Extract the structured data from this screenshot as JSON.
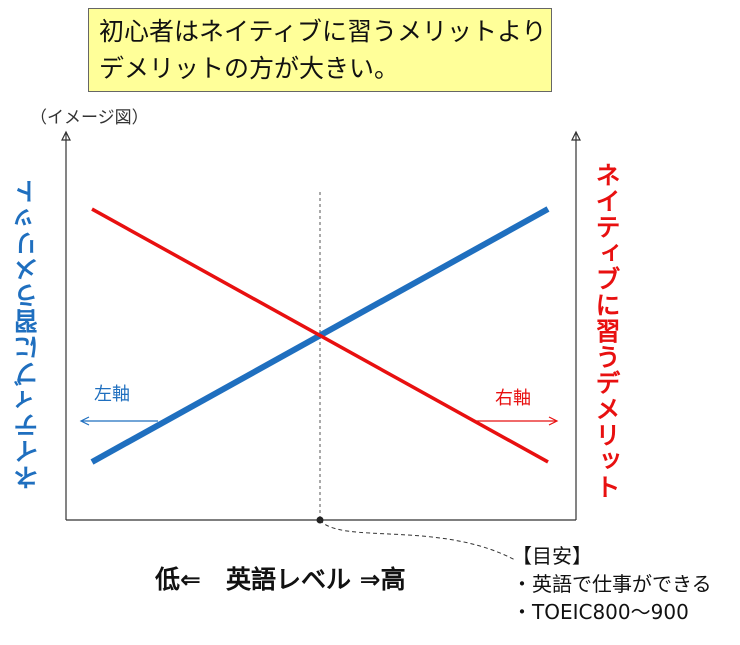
{
  "header": {
    "line1": "初心者はネイティブに習うメリットより",
    "line2": "デメリットの方が大きい。"
  },
  "note": "（イメージ図）",
  "axes": {
    "left_label": "ネイティブに習うメリット",
    "right_label": "ネイティブに習うデメリット",
    "left_tag": "左軸",
    "right_tag": "右軸",
    "x_label": "低⇐　英語レベル ⇒高"
  },
  "guide": {
    "title": "【目安】",
    "items": [
      "・英語で仕事ができる",
      "・TOEIC800〜900"
    ]
  },
  "colors": {
    "merit": "#1f6fbf",
    "demerit": "#e81010",
    "axis": "#333333"
  },
  "chart_data": {
    "type": "line",
    "title": "初心者はネイティブに習うメリットよりデメリットの方が大きい。",
    "xlabel": "低⇐　英語レベル ⇒高",
    "ylabel": "ネイティブに習うメリット",
    "y2label": "ネイティブに習うデメリット",
    "x": [
      0,
      1
    ],
    "xlim": [
      0,
      1
    ],
    "ylim": [
      0,
      1
    ],
    "grid": false,
    "series": [
      {
        "name": "ネイティブに習うメリット",
        "axis": "left",
        "color": "#1f6fbf",
        "values": [
          0.05,
          0.95
        ]
      },
      {
        "name": "ネイティブに習うデメリット",
        "axis": "right",
        "color": "#e81010",
        "values": [
          0.95,
          0.05
        ]
      }
    ],
    "annotations": [
      {
        "type": "vline",
        "x": 0.5,
        "style": "dashed"
      },
      {
        "type": "arrow",
        "direction": "left",
        "text": "左軸"
      },
      {
        "type": "arrow",
        "direction": "right",
        "text": "右軸"
      }
    ]
  }
}
